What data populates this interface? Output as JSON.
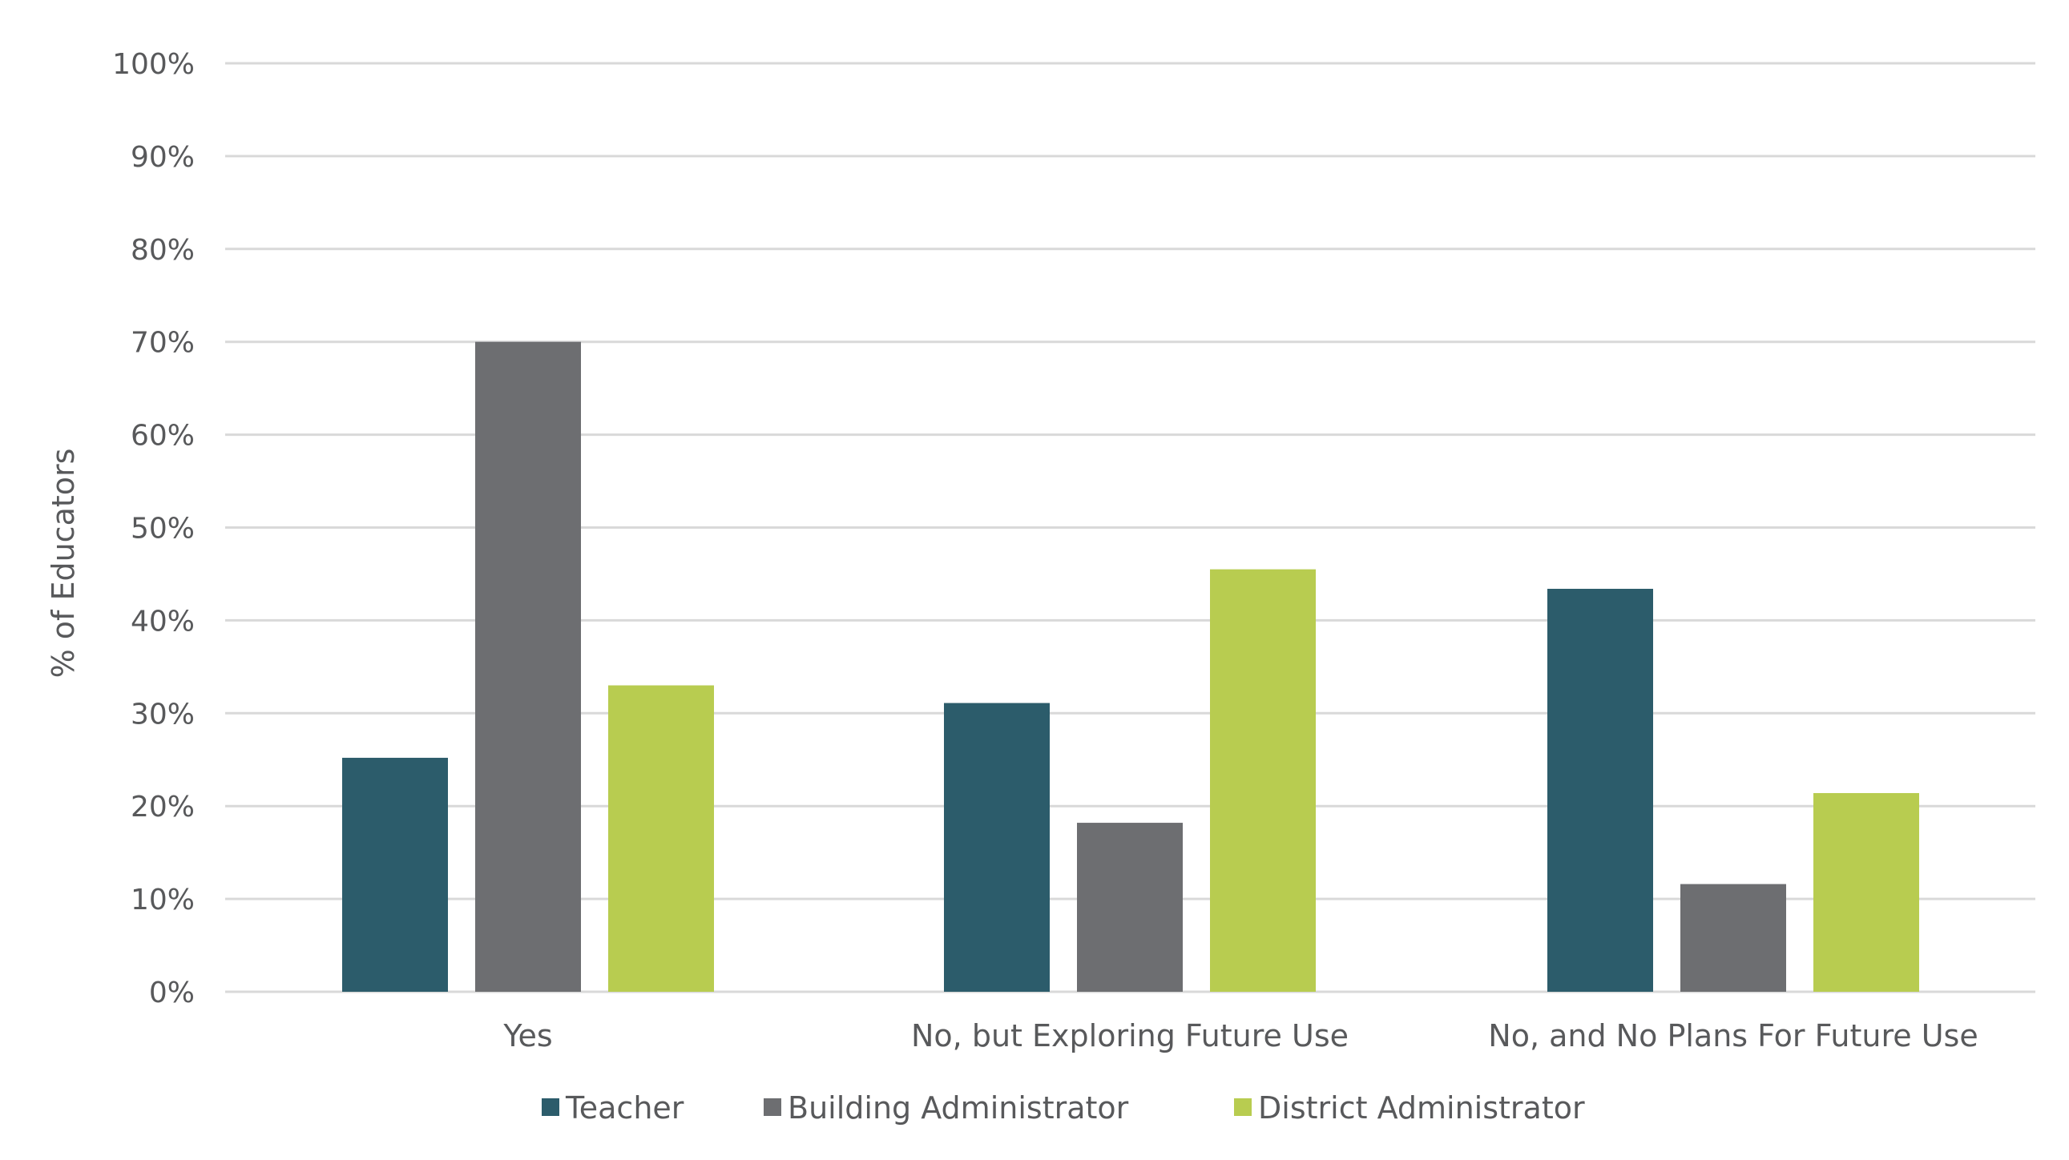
{
  "chart_data": {
    "type": "bar",
    "title": "",
    "xlabel": "",
    "ylabel": "% of Educators",
    "ylim": [
      0,
      100
    ],
    "yticks": [
      "0%",
      "10%",
      "20%",
      "30%",
      "40%",
      "50%",
      "60%",
      "70%",
      "80%",
      "90%",
      "100%"
    ],
    "grid": true,
    "legend_position": "bottom",
    "categories": [
      "Yes",
      "No, but Exploring Future Use",
      "No, and No Plans For Future Use"
    ],
    "series": [
      {
        "name": "Teacher",
        "color": "#2c5c6b",
        "values": [
          25.2,
          31.1,
          43.4
        ]
      },
      {
        "name": "Building Administrator",
        "color": "#6d6e71",
        "values": [
          70.0,
          18.2,
          11.6
        ]
      },
      {
        "name": "District Administrator",
        "color": "#b8cc50",
        "values": [
          33.0,
          45.5,
          21.4
        ]
      }
    ]
  }
}
